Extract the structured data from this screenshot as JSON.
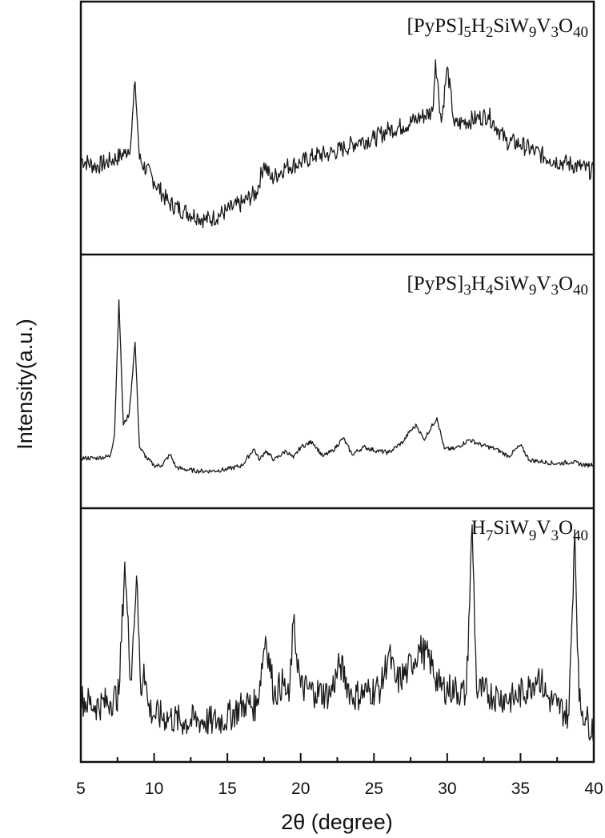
{
  "chart_data": {
    "type": "line",
    "title": "",
    "xlabel": "2θ (degree)",
    "ylabel": "Intensity(a.u.)",
    "xlim": [
      5,
      40
    ],
    "x_ticks": [
      5,
      10,
      15,
      20,
      25,
      30,
      35,
      40
    ],
    "x_minor_ticks": [
      7.5,
      12.5,
      17.5,
      22.5,
      27.5,
      32.5,
      37.5
    ],
    "grid": false,
    "legend": "per-panel text labels at top-right",
    "layout": "3 vertically stacked panels sharing x-axis, no y tick labels",
    "series": [
      {
        "name": "[PyPS]5H2SiW9V3O40",
        "panel": 1,
        "description": "broad amorphous hump centered near 29 deg, sharp peak at 8.7 deg, minimum near 13.5 deg",
        "peaks_2theta": [
          8.7,
          17.5,
          19.0,
          29.2,
          30.0,
          32.8
        ],
        "x": [
          5,
          6,
          7,
          8,
          8.4,
          8.7,
          9.0,
          10,
          11,
          12,
          13,
          13.5,
          14,
          15,
          16,
          17,
          17.5,
          18,
          19,
          20,
          21,
          22,
          23,
          24,
          25,
          26,
          27,
          28,
          29,
          29.2,
          29.6,
          30.0,
          30.5,
          31,
          32,
          32.8,
          33.5,
          34,
          35,
          36,
          37,
          38,
          39,
          40
        ],
        "values": [
          0.44,
          0.4,
          0.43,
          0.47,
          0.52,
          0.86,
          0.44,
          0.32,
          0.2,
          0.16,
          0.13,
          0.11,
          0.12,
          0.16,
          0.2,
          0.26,
          0.42,
          0.33,
          0.4,
          0.42,
          0.46,
          0.47,
          0.5,
          0.54,
          0.55,
          0.6,
          0.62,
          0.66,
          0.7,
          0.98,
          0.64,
          0.94,
          0.62,
          0.64,
          0.66,
          0.68,
          0.6,
          0.54,
          0.52,
          0.48,
          0.44,
          0.42,
          0.4,
          0.37
        ]
      },
      {
        "name": "[PyPS]3H4SiW9V3O40",
        "panel": 2,
        "description": "sharp peaks at 7.6 and 8.7 deg, many weak peaks 16-35 deg",
        "peaks_2theta": [
          7.6,
          8.7,
          11.1,
          16.8,
          17.6,
          19.5,
          20.8,
          22.9,
          24.3,
          25.2,
          27.4,
          27.9,
          29.3,
          31.5,
          32.4,
          33.3,
          35.0
        ],
        "x": [
          5,
          6,
          7,
          7.3,
          7.6,
          7.9,
          8.3,
          8.7,
          9.0,
          9.5,
          10,
          10.5,
          11.1,
          11.5,
          12,
          13,
          14,
          15,
          16,
          16.8,
          17.2,
          17.6,
          18.2,
          19.0,
          19.5,
          20.0,
          20.8,
          21.5,
          22.2,
          22.9,
          23.5,
          24.3,
          25.2,
          26,
          27.0,
          27.4,
          27.9,
          28.4,
          29.3,
          29.8,
          30.5,
          31.5,
          32.4,
          33.3,
          34.2,
          35.0,
          35.6,
          36.5,
          37.5,
          38.5,
          39.5,
          40
        ],
        "values": [
          0.12,
          0.12,
          0.13,
          0.25,
          0.98,
          0.3,
          0.36,
          0.75,
          0.18,
          0.12,
          0.08,
          0.08,
          0.14,
          0.07,
          0.06,
          0.05,
          0.05,
          0.06,
          0.08,
          0.17,
          0.11,
          0.16,
          0.11,
          0.16,
          0.12,
          0.18,
          0.21,
          0.13,
          0.16,
          0.23,
          0.14,
          0.18,
          0.16,
          0.15,
          0.21,
          0.26,
          0.3,
          0.22,
          0.34,
          0.17,
          0.17,
          0.22,
          0.19,
          0.17,
          0.13,
          0.19,
          0.11,
          0.1,
          0.09,
          0.1,
          0.08,
          0.09
        ]
      },
      {
        "name": "H7SiW9V3O40",
        "panel": 3,
        "description": "noisy baseline with sharp peaks at 8.0, 8.8, 9.3, 17.6, 19.5, 26.0, 31.7, 38.7 deg and broad hump near 28 deg",
        "peaks_2theta": [
          8.0,
          8.8,
          9.3,
          16.2,
          17.6,
          18.8,
          19.5,
          22.7,
          26.0,
          28.1,
          31.7,
          35.6,
          36.2,
          38.7
        ],
        "x": [
          5,
          6,
          7,
          7.6,
          8.0,
          8.4,
          8.8,
          9.1,
          9.3,
          9.6,
          10,
          11,
          12,
          13,
          14,
          15,
          16.2,
          17.0,
          17.6,
          18.2,
          18.8,
          19.2,
          19.5,
          20,
          21,
          22,
          22.7,
          23.5,
          24.5,
          25.5,
          26.0,
          26.5,
          27.3,
          28.1,
          28.8,
          29.5,
          30.5,
          31.3,
          31.7,
          32.0,
          32.5,
          33.5,
          34.5,
          35.6,
          36.2,
          36.8,
          37.5,
          38.3,
          38.7,
          39.0,
          39.5,
          40
        ],
        "values": [
          0.23,
          0.2,
          0.22,
          0.25,
          0.82,
          0.31,
          0.76,
          0.25,
          0.38,
          0.2,
          0.16,
          0.15,
          0.13,
          0.14,
          0.13,
          0.15,
          0.21,
          0.2,
          0.5,
          0.25,
          0.3,
          0.22,
          0.56,
          0.28,
          0.26,
          0.25,
          0.38,
          0.24,
          0.26,
          0.28,
          0.43,
          0.3,
          0.35,
          0.45,
          0.4,
          0.28,
          0.27,
          0.25,
          0.98,
          0.27,
          0.26,
          0.24,
          0.23,
          0.28,
          0.34,
          0.24,
          0.2,
          0.16,
          0.96,
          0.22,
          0.14,
          0.1
        ]
      }
    ]
  },
  "panels": [
    {
      "label_main": "[PyPS]",
      "label_parts": [
        [
          "5",
          true
        ],
        [
          "H",
          false
        ],
        [
          "2",
          true
        ],
        [
          "SiW",
          false
        ],
        [
          "9",
          true
        ],
        [
          "V",
          false
        ],
        [
          "3",
          true
        ],
        [
          "O",
          false
        ],
        [
          "40",
          true
        ]
      ]
    },
    {
      "label_main": "[PyPS]",
      "label_parts": [
        [
          "3",
          true
        ],
        [
          "H",
          false
        ],
        [
          "4",
          true
        ],
        [
          "SiW",
          false
        ],
        [
          "9",
          true
        ],
        [
          "V",
          false
        ],
        [
          "3",
          true
        ],
        [
          "O",
          false
        ],
        [
          "40",
          true
        ]
      ]
    },
    {
      "label_main": "H",
      "label_parts": [
        [
          "7",
          true
        ],
        [
          "SiW",
          false
        ],
        [
          "9",
          true
        ],
        [
          "V",
          false
        ],
        [
          "3",
          true
        ],
        [
          "O",
          false
        ],
        [
          "40",
          true
        ]
      ]
    }
  ],
  "axis": {
    "x_title": "2θ (degree)",
    "y_title": "Intensity(a.u.)",
    "x_tick_labels": [
      "5",
      "10",
      "15",
      "20",
      "25",
      "30",
      "35",
      "40"
    ]
  },
  "colors": {
    "line": "#1a1a1a",
    "frame": "#111111",
    "background": "#ffffff"
  }
}
